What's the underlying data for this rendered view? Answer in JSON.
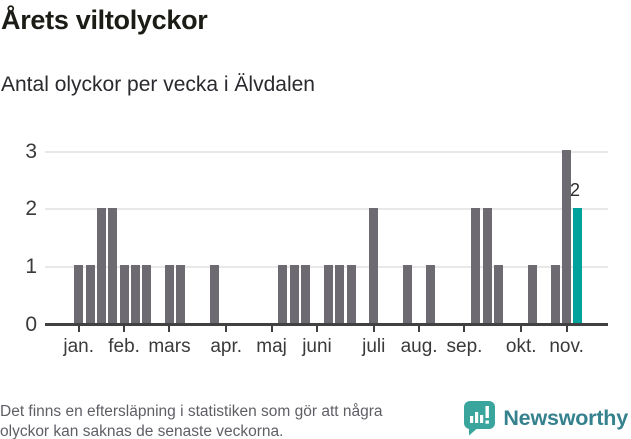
{
  "header": {
    "title": "Årets viltolyckor",
    "subtitle": "Antal olyckor per vecka i Älvdalen"
  },
  "chart_data": {
    "type": "bar",
    "title": "Årets viltolyckor",
    "subtitle": "Antal olyckor per vecka i Älvdalen",
    "x_unit": "vecka",
    "weeks": [
      1,
      2,
      3,
      4,
      5,
      6,
      7,
      8,
      9,
      10,
      11,
      12,
      13,
      14,
      15,
      16,
      17,
      18,
      19,
      20,
      21,
      22,
      23,
      24,
      25,
      26,
      27,
      28,
      29,
      30,
      31,
      32,
      33,
      34,
      35,
      36,
      37,
      38,
      39,
      40,
      41,
      42,
      43,
      44,
      45
    ],
    "values": [
      1,
      1,
      2,
      2,
      1,
      1,
      1,
      0,
      1,
      1,
      0,
      0,
      1,
      0,
      0,
      0,
      0,
      0,
      1,
      1,
      1,
      0,
      1,
      1,
      1,
      0,
      2,
      0,
      0,
      1,
      0,
      1,
      0,
      0,
      0,
      2,
      2,
      1,
      0,
      0,
      1,
      0,
      1,
      3,
      2
    ],
    "ylim": [
      0,
      3
    ],
    "yticks": [
      0,
      1,
      2,
      3
    ],
    "grid": "horizontal",
    "month_ticks": [
      {
        "slot": 1,
        "label": "jan."
      },
      {
        "slot": 5,
        "label": "feb."
      },
      {
        "slot": 9,
        "label": "mars"
      },
      {
        "slot": 14,
        "label": "apr."
      },
      {
        "slot": 18,
        "label": "maj"
      },
      {
        "slot": 22,
        "label": "juni"
      },
      {
        "slot": 27,
        "label": "juli"
      },
      {
        "slot": 31,
        "label": "aug."
      },
      {
        "slot": 35,
        "label": "sep."
      },
      {
        "slot": 40,
        "label": "okt."
      },
      {
        "slot": 44,
        "label": "nov."
      }
    ],
    "highlight": {
      "index": 44,
      "value": 2,
      "label": "2"
    },
    "colors": {
      "bar": "#6e6a72",
      "highlight": "#00a39b",
      "grid": "#e8e8e8",
      "axis": "#414141"
    }
  },
  "footer": {
    "note_line1": "Det finns en eftersläpning i statistiken som gör att några",
    "note_line2": "olyckor kan saknas de senaste veckorna.",
    "brand": "Newsworthy"
  },
  "brand_colors": {
    "icon": "#3aa59d",
    "wordmark": "#35818e"
  }
}
